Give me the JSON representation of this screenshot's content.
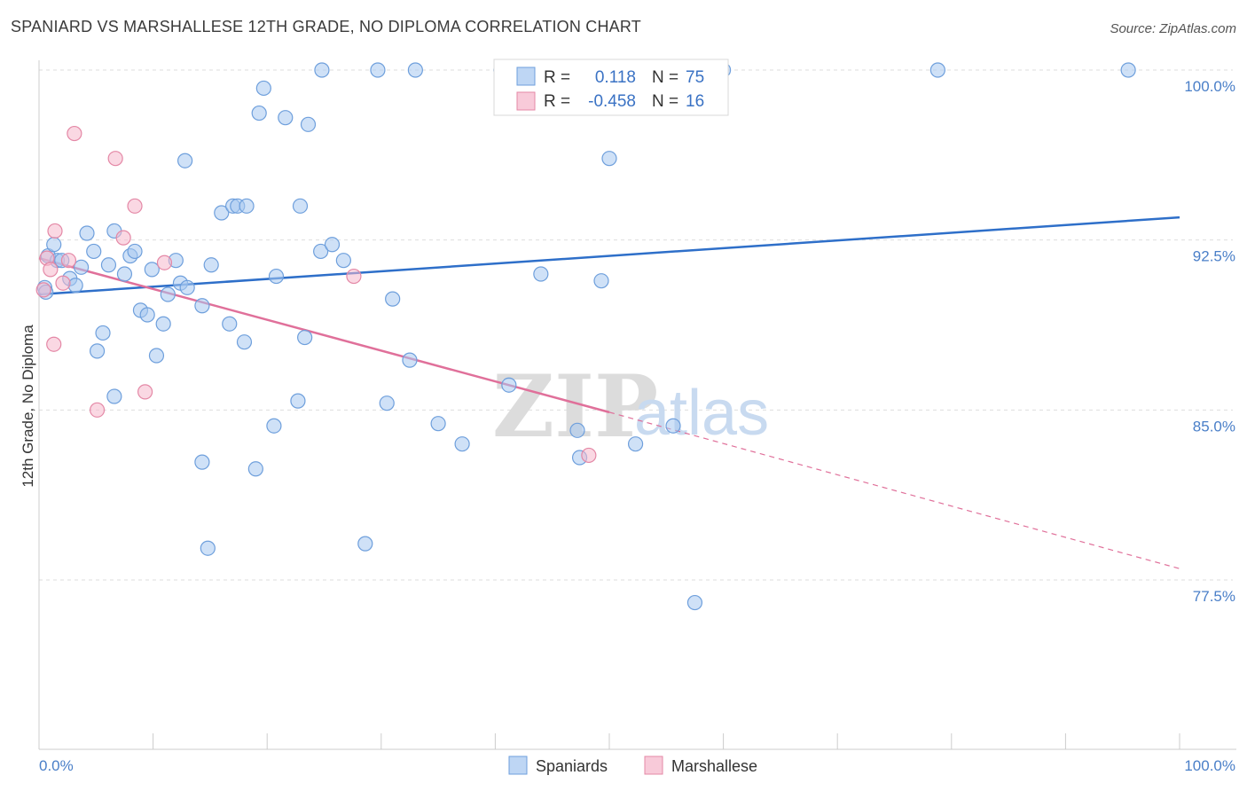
{
  "title": "SPANIARD VS MARSHALLESE 12TH GRADE, NO DIPLOMA CORRELATION CHART",
  "source": "Source: ZipAtlas.com",
  "watermark": {
    "zip": "ZIP",
    "atlas": "atlas"
  },
  "legend": {
    "r_label": "R =",
    "n_label": "N =",
    "rows": [
      {
        "r": "0.118",
        "n": "75",
        "color": "#a8c8f0",
        "edge": "#6e9fdc"
      },
      {
        "r": "-0.458",
        "n": "16",
        "color": "#f5b8cc",
        "edge": "#e488a6"
      }
    ]
  },
  "bottom_legend": [
    {
      "label": "Spaniards",
      "color": "#a8c8f0",
      "edge": "#6e9fdc"
    },
    {
      "label": "Marshallese",
      "color": "#f5b8cc",
      "edge": "#e488a6"
    }
  ],
  "chart_data": {
    "type": "scatter",
    "ylabel": "12th Grade, No Diploma",
    "xlabel": "",
    "x_tick_labels": [
      "0.0%",
      "100.0%"
    ],
    "y_tick_labels": [
      "100.0%",
      "92.5%",
      "85.0%",
      "77.5%"
    ],
    "y_ticks": [
      100.0,
      92.5,
      85.0,
      77.5
    ],
    "xlim": [
      0,
      100
    ],
    "ylim": [
      71.9,
      100.7
    ],
    "grid": true,
    "series": [
      {
        "name": "Spaniards",
        "color": "#a8c8f0",
        "edge": "#6e9fdc",
        "trend": {
          "x0": 0,
          "y0": 90.1,
          "x1": 100,
          "y1": 93.5,
          "color": "#2e6fc9"
        },
        "points": [
          [
            0.5,
            90.4
          ],
          [
            0.6,
            90.2
          ],
          [
            0.8,
            91.8
          ],
          [
            1.3,
            92.3
          ],
          [
            1.6,
            91.6
          ],
          [
            2.0,
            91.6
          ],
          [
            2.7,
            90.8
          ],
          [
            3.2,
            90.5
          ],
          [
            3.7,
            91.3
          ],
          [
            4.2,
            92.8
          ],
          [
            4.8,
            92.0
          ],
          [
            5.1,
            87.6
          ],
          [
            5.6,
            88.4
          ],
          [
            6.1,
            91.4
          ],
          [
            6.6,
            85.6
          ],
          [
            6.6,
            92.9
          ],
          [
            7.5,
            91.0
          ],
          [
            8.0,
            91.8
          ],
          [
            8.4,
            92.0
          ],
          [
            8.9,
            89.4
          ],
          [
            9.5,
            89.2
          ],
          [
            9.9,
            91.2
          ],
          [
            10.3,
            87.4
          ],
          [
            10.9,
            88.8
          ],
          [
            11.3,
            90.1
          ],
          [
            12.0,
            91.6
          ],
          [
            12.4,
            90.6
          ],
          [
            13.0,
            90.4
          ],
          [
            14.3,
            82.7
          ],
          [
            14.8,
            78.9
          ],
          [
            14.3,
            89.6
          ],
          [
            12.8,
            96.0
          ],
          [
            15.1,
            91.4
          ],
          [
            16.0,
            93.7
          ],
          [
            16.7,
            88.8
          ],
          [
            17.0,
            94.0
          ],
          [
            17.4,
            94.0
          ],
          [
            18.0,
            88.0
          ],
          [
            18.2,
            94.0
          ],
          [
            19.0,
            82.4
          ],
          [
            19.3,
            98.1
          ],
          [
            19.7,
            99.2
          ],
          [
            20.6,
            84.3
          ],
          [
            20.8,
            90.9
          ],
          [
            21.6,
            97.9
          ],
          [
            22.7,
            85.4
          ],
          [
            22.9,
            94.0
          ],
          [
            23.3,
            88.2
          ],
          [
            23.6,
            97.6
          ],
          [
            24.8,
            100.0
          ],
          [
            24.7,
            92.0
          ],
          [
            25.7,
            92.3
          ],
          [
            26.7,
            91.6
          ],
          [
            28.6,
            79.1
          ],
          [
            29.7,
            100.0
          ],
          [
            30.5,
            85.3
          ],
          [
            31.0,
            89.9
          ],
          [
            32.5,
            87.2
          ],
          [
            33.0,
            100.0
          ],
          [
            35.0,
            84.4
          ],
          [
            37.1,
            83.5
          ],
          [
            41.2,
            86.1
          ],
          [
            44.0,
            91.0
          ],
          [
            47.2,
            84.1
          ],
          [
            47.4,
            82.9
          ],
          [
            49.3,
            90.7
          ],
          [
            50.0,
            96.1
          ],
          [
            52.3,
            83.5
          ],
          [
            55.6,
            84.3
          ],
          [
            57.5,
            76.5
          ],
          [
            60.0,
            100.0
          ],
          [
            78.8,
            100.0
          ],
          [
            95.5,
            100.0
          ],
          [
            40.5,
            100.0
          ],
          [
            45.0,
            100.0
          ]
        ]
      },
      {
        "name": "Marshallese",
        "color": "#f5b8cc",
        "edge": "#e488a6",
        "trend": {
          "x0": 0,
          "y0": 91.7,
          "x1": 50,
          "y1": 84.9,
          "ext_x1": 100,
          "ext_y1": 78.0,
          "color": "#e0709a"
        },
        "points": [
          [
            0.4,
            90.3
          ],
          [
            0.7,
            91.7
          ],
          [
            1.0,
            91.2
          ],
          [
            1.3,
            87.9
          ],
          [
            1.4,
            92.9
          ],
          [
            2.1,
            90.6
          ],
          [
            2.6,
            91.6
          ],
          [
            3.1,
            97.2
          ],
          [
            5.1,
            85.0
          ],
          [
            6.7,
            96.1
          ],
          [
            7.4,
            92.6
          ],
          [
            8.4,
            94.0
          ],
          [
            9.3,
            85.8
          ],
          [
            11.0,
            91.5
          ],
          [
            27.6,
            90.9
          ],
          [
            48.2,
            83.0
          ]
        ]
      }
    ]
  }
}
